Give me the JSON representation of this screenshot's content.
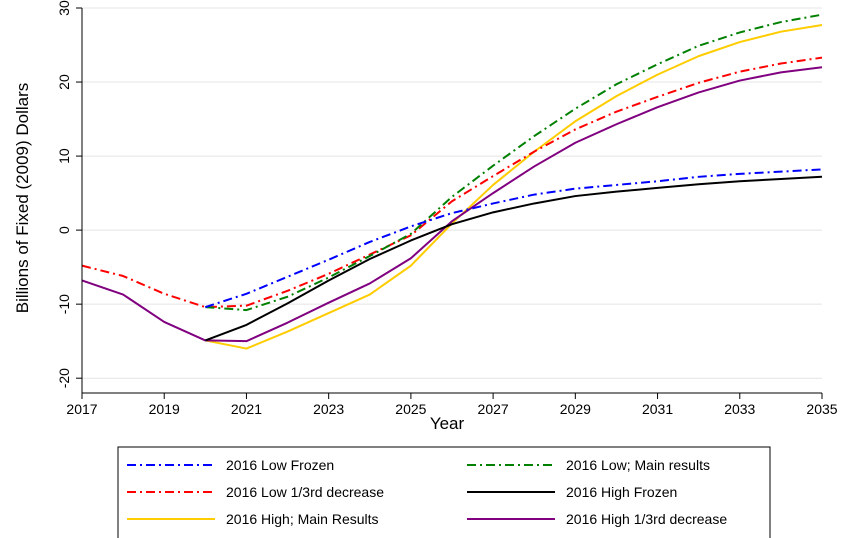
{
  "chart_data": {
    "type": "line",
    "xlabel": "Year",
    "ylabel": "Billions of Fixed (2009) Dollars",
    "xlim": [
      2017,
      2035
    ],
    "ylim": [
      -22,
      30
    ],
    "x_ticks": [
      "2017",
      "2019",
      "2021",
      "2023",
      "2025",
      "2027",
      "2029",
      "2031",
      "2033",
      "2035"
    ],
    "y_ticks": [
      "30",
      "20",
      "10",
      "0",
      "-10",
      "-20"
    ],
    "grid": "horizontal",
    "legend_position": "bottom",
    "series": [
      {
        "name": "2016 Low Frozen",
        "color": "#0000ff",
        "dash": "dash-dot",
        "x": [
          2020,
          2021,
          2022,
          2023,
          2024,
          2025,
          2026,
          2027,
          2028,
          2029,
          2030,
          2031,
          2032,
          2033,
          2034,
          2035
        ],
        "y": [
          -10.4,
          -8.6,
          -6.3,
          -4.0,
          -1.6,
          0.5,
          2.3,
          3.6,
          4.8,
          5.6,
          6.1,
          6.6,
          7.2,
          7.6,
          7.9,
          8.2
        ]
      },
      {
        "name": "2016 Low; Main results",
        "color": "#008000",
        "dash": "dash-dot",
        "x": [
          2020,
          2021,
          2022,
          2023,
          2024,
          2025,
          2026,
          2027,
          2028,
          2029,
          2030,
          2031,
          2032,
          2033,
          2034,
          2035
        ],
        "y": [
          -10.4,
          -10.8,
          -9.0,
          -6.4,
          -3.5,
          -0.5,
          4.5,
          8.7,
          12.7,
          16.4,
          19.7,
          22.4,
          24.9,
          26.7,
          28.1,
          29.1
        ]
      },
      {
        "name": "2016 Low 1/3rd decrease",
        "color": "#ff0000",
        "dash": "dash-dot",
        "x": [
          2017,
          2018,
          2019,
          2020,
          2021,
          2022,
          2023,
          2024,
          2025,
          2026,
          2027,
          2028,
          2029,
          2030,
          2031,
          2032,
          2033,
          2034,
          2035
        ],
        "y": [
          -4.8,
          -6.2,
          -8.6,
          -10.4,
          -10.2,
          -8.2,
          -5.9,
          -3.3,
          -0.7,
          3.9,
          7.3,
          10.6,
          13.6,
          16.0,
          18.0,
          19.9,
          21.4,
          22.5,
          23.3
        ]
      },
      {
        "name": "2016 High Frozen",
        "color": "#000000",
        "dash": "solid",
        "x": [
          2020,
          2021,
          2022,
          2023,
          2024,
          2025,
          2026,
          2027,
          2028,
          2029,
          2030,
          2031,
          2032,
          2033,
          2034,
          2035
        ],
        "y": [
          -14.9,
          -12.8,
          -9.9,
          -6.8,
          -3.9,
          -1.4,
          0.8,
          2.4,
          3.6,
          4.6,
          5.2,
          5.7,
          6.2,
          6.6,
          6.9,
          7.2
        ]
      },
      {
        "name": "2016 High; Main Results",
        "color": "#ffcc00",
        "dash": "solid",
        "x": [
          2020,
          2021,
          2022,
          2023,
          2024,
          2025,
          2026,
          2027,
          2028,
          2029,
          2030,
          2031,
          2032,
          2033,
          2034,
          2035
        ],
        "y": [
          -14.9,
          -16.0,
          -13.7,
          -11.2,
          -8.7,
          -4.8,
          0.9,
          6.1,
          10.6,
          14.7,
          18.1,
          21.0,
          23.5,
          25.4,
          26.8,
          27.7
        ]
      },
      {
        "name": "2016 High 1/3rd decrease",
        "color": "#800080",
        "dash": "solid",
        "x": [
          2017,
          2018,
          2019,
          2020,
          2021,
          2022,
          2023,
          2024,
          2025,
          2026,
          2027,
          2028,
          2029,
          2030,
          2031,
          2032,
          2033,
          2034,
          2035
        ],
        "y": [
          -6.8,
          -8.7,
          -12.4,
          -14.9,
          -15.0,
          -12.5,
          -9.8,
          -7.2,
          -3.8,
          1.2,
          5.0,
          8.6,
          11.8,
          14.3,
          16.6,
          18.6,
          20.2,
          21.3,
          22.0
        ]
      }
    ]
  }
}
